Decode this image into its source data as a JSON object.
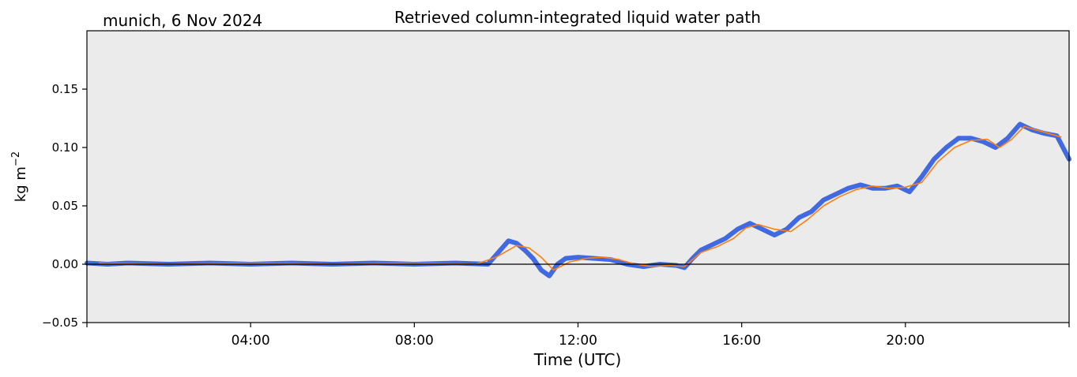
{
  "location_date": "munich, 6 Nov 2024",
  "chart_data": {
    "type": "line",
    "title": "Retrieved column-integrated liquid water path",
    "xlabel": "Time (UTC)",
    "ylabel": "kg m",
    "ylabel_superscript": "−2",
    "xlim": [
      0,
      24
    ],
    "ylim": [
      -0.05,
      0.2
    ],
    "x_ticks": [
      {
        "value": 4,
        "label": "04:00"
      },
      {
        "value": 8,
        "label": "08:00"
      },
      {
        "value": 12,
        "label": "12:00"
      },
      {
        "value": 16,
        "label": "16:00"
      },
      {
        "value": 20,
        "label": "20:00"
      }
    ],
    "y_ticks": [
      {
        "value": -0.05,
        "label": "−0.05"
      },
      {
        "value": 0.0,
        "label": "0.00"
      },
      {
        "value": 0.05,
        "label": "0.05"
      },
      {
        "value": 0.1,
        "label": "0.10"
      },
      {
        "value": 0.15,
        "label": "0.15"
      }
    ],
    "zero_line": 0,
    "plot_background": "#ebebeb",
    "grid": false,
    "series": [
      {
        "color": "#4169e1",
        "x": [
          0,
          0.5,
          1,
          2,
          3,
          4,
          5,
          6,
          7,
          8,
          9,
          9.8,
          10,
          10.3,
          10.5,
          10.7,
          10.9,
          11.1,
          11.3,
          11.5,
          11.7,
          12,
          12.4,
          12.8,
          13.2,
          13.6,
          14.0,
          14.4,
          14.6,
          14.8,
          15.0,
          15.3,
          15.6,
          15.9,
          16.2,
          16.5,
          16.8,
          17.1,
          17.4,
          17.7,
          18.0,
          18.3,
          18.6,
          18.9,
          19.2,
          19.5,
          19.8,
          20.1,
          20.4,
          20.7,
          21.0,
          21.3,
          21.6,
          21.9,
          22.2,
          22.5,
          22.8,
          23.1,
          23.4,
          23.7,
          24.0
        ],
        "y": [
          0.001,
          0.0,
          0.001,
          0.0,
          0.001,
          0.0,
          0.001,
          0.0,
          0.001,
          0.0,
          0.001,
          0.0,
          0.008,
          0.02,
          0.018,
          0.012,
          0.005,
          -0.005,
          -0.01,
          0.0,
          0.005,
          0.006,
          0.005,
          0.004,
          0.0,
          -0.002,
          0.0,
          -0.001,
          -0.003,
          0.005,
          0.012,
          0.017,
          0.022,
          0.03,
          0.035,
          0.03,
          0.025,
          0.03,
          0.04,
          0.045,
          0.055,
          0.06,
          0.065,
          0.068,
          0.065,
          0.065,
          0.067,
          0.062,
          0.075,
          0.09,
          0.1,
          0.108,
          0.108,
          0.105,
          0.1,
          0.108,
          0.12,
          0.115,
          0.112,
          0.11,
          0.09
        ]
      },
      {
        "color": "#ff7f0e",
        "x": [
          0.3,
          2,
          4,
          6,
          8,
          9.5,
          10,
          10.5,
          10.8,
          11.1,
          11.4,
          11.8,
          12.2,
          12.6,
          13,
          13.4,
          13.8,
          14.2,
          14.6,
          15.0,
          15.4,
          15.8,
          16.1,
          16.4,
          16.8,
          17.2,
          17.6,
          18.0,
          18.4,
          18.8,
          19.2,
          19.6,
          20.0,
          20.4,
          20.8,
          21.2,
          21.6,
          22.0,
          22.3,
          22.6,
          22.9,
          23.2,
          23.5,
          23.8
        ],
        "y": [
          0.001,
          0.0,
          0.001,
          0.0,
          0.001,
          0.0,
          0.006,
          0.016,
          0.014,
          0.006,
          -0.005,
          0.002,
          0.005,
          0.006,
          0.004,
          0.0,
          -0.002,
          -0.001,
          -0.002,
          0.01,
          0.015,
          0.022,
          0.031,
          0.034,
          0.03,
          0.028,
          0.038,
          0.05,
          0.058,
          0.064,
          0.067,
          0.065,
          0.066,
          0.07,
          0.088,
          0.1,
          0.106,
          0.107,
          0.1,
          0.107,
          0.118,
          0.115,
          0.112,
          0.109
        ]
      }
    ]
  }
}
